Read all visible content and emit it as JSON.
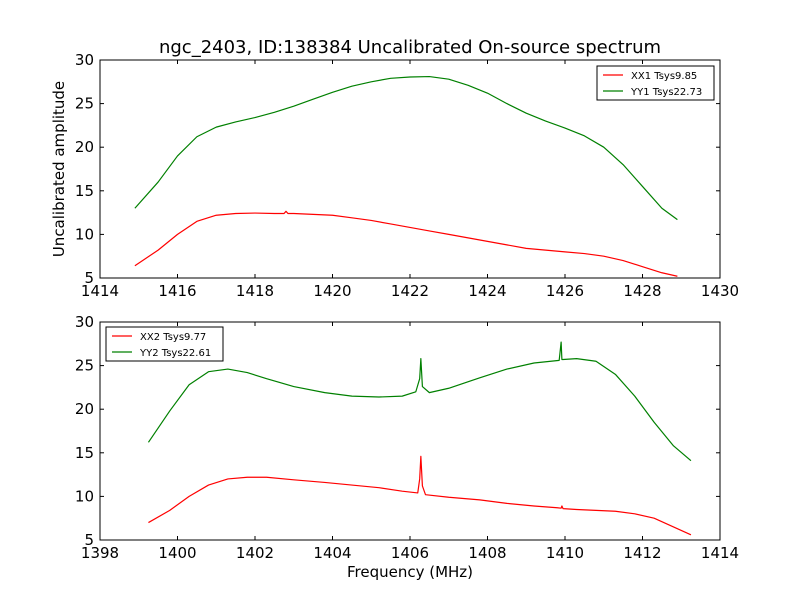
{
  "figure": {
    "title": "ngc_2403, ID:138384 Uncalibrated On-source spectrum",
    "ylabel": "Uncalibrated amplitude",
    "xlabel": "Frequency (MHz)"
  },
  "chart_data": [
    {
      "type": "line",
      "title": "ngc_2403, ID:138384 Uncalibrated On-source spectrum",
      "xlabel": "",
      "ylabel": "Uncalibrated amplitude",
      "xlim": [
        1414,
        1430
      ],
      "ylim": [
        5,
        30
      ],
      "xticks": [
        1414,
        1416,
        1418,
        1420,
        1422,
        1424,
        1426,
        1428,
        1430
      ],
      "yticks": [
        5,
        10,
        15,
        20,
        25,
        30
      ],
      "grid": false,
      "legend_position": "top-right",
      "series": [
        {
          "name": "XX1 Tsys9.85",
          "color": "#ff0000",
          "x": [
            1414.9,
            1415.5,
            1416.0,
            1416.5,
            1417.0,
            1417.5,
            1418.0,
            1418.5,
            1418.75,
            1418.8,
            1418.85,
            1419.0,
            1419.5,
            1420.0,
            1420.5,
            1421.0,
            1421.5,
            1422.0,
            1422.5,
            1423.0,
            1423.5,
            1424.0,
            1424.5,
            1425.0,
            1425.5,
            1426.0,
            1426.5,
            1427.0,
            1427.5,
            1428.0,
            1428.5,
            1428.9
          ],
          "y": [
            6.4,
            8.2,
            10.0,
            11.5,
            12.2,
            12.4,
            12.45,
            12.4,
            12.4,
            12.65,
            12.4,
            12.4,
            12.3,
            12.2,
            11.9,
            11.6,
            11.2,
            10.8,
            10.4,
            10.0,
            9.6,
            9.2,
            8.8,
            8.4,
            8.2,
            8.0,
            7.8,
            7.5,
            7.0,
            6.3,
            5.6,
            5.2
          ]
        },
        {
          "name": "YY1 Tsys22.73",
          "color": "#008000",
          "x": [
            1414.9,
            1415.5,
            1416.0,
            1416.5,
            1417.0,
            1417.5,
            1418.0,
            1418.5,
            1419.0,
            1419.5,
            1420.0,
            1420.5,
            1421.0,
            1421.5,
            1422.0,
            1422.5,
            1423.0,
            1423.5,
            1424.0,
            1424.5,
            1425.0,
            1425.5,
            1426.0,
            1426.5,
            1427.0,
            1427.5,
            1428.0,
            1428.5,
            1428.9
          ],
          "y": [
            13.0,
            16.0,
            19.0,
            21.2,
            22.3,
            22.9,
            23.4,
            24.0,
            24.7,
            25.5,
            26.3,
            27.0,
            27.5,
            27.9,
            28.05,
            28.1,
            27.8,
            27.1,
            26.2,
            25.0,
            23.9,
            23.0,
            22.2,
            21.3,
            20.0,
            18.0,
            15.5,
            13.0,
            11.7
          ]
        }
      ]
    },
    {
      "type": "line",
      "title": "",
      "xlabel": "Frequency (MHz)",
      "ylabel": "",
      "xlim": [
        1398,
        1414
      ],
      "ylim": [
        5,
        30
      ],
      "xticks": [
        1398,
        1400,
        1402,
        1404,
        1406,
        1408,
        1410,
        1412,
        1414
      ],
      "yticks": [
        5,
        10,
        15,
        20,
        25,
        30
      ],
      "grid": false,
      "legend_position": "top-left",
      "series": [
        {
          "name": "XX2 Tsys9.77",
          "color": "#ff0000",
          "x": [
            1399.25,
            1399.8,
            1400.3,
            1400.8,
            1401.3,
            1401.8,
            1402.3,
            1403.0,
            1403.8,
            1404.5,
            1405.2,
            1405.8,
            1406.2,
            1406.25,
            1406.28,
            1406.32,
            1406.4,
            1407.0,
            1407.8,
            1408.5,
            1409.2,
            1409.8,
            1409.9,
            1409.92,
            1409.95,
            1410.3,
            1410.8,
            1411.3,
            1411.8,
            1412.3,
            1412.8,
            1413.25
          ],
          "y": [
            7.0,
            8.4,
            10.0,
            11.3,
            12.0,
            12.2,
            12.2,
            11.9,
            11.6,
            11.3,
            11.0,
            10.6,
            10.4,
            12.0,
            14.6,
            11.2,
            10.2,
            9.9,
            9.6,
            9.2,
            8.9,
            8.7,
            8.65,
            8.9,
            8.6,
            8.5,
            8.4,
            8.3,
            8.0,
            7.5,
            6.5,
            5.6
          ]
        },
        {
          "name": "YY2 Tsys22.61",
          "color": "#008000",
          "x": [
            1399.25,
            1399.8,
            1400.3,
            1400.8,
            1401.3,
            1401.8,
            1402.3,
            1403.0,
            1403.8,
            1404.5,
            1405.2,
            1405.8,
            1406.15,
            1406.25,
            1406.28,
            1406.32,
            1406.5,
            1407.0,
            1407.8,
            1408.5,
            1409.2,
            1409.85,
            1409.9,
            1409.92,
            1409.95,
            1410.3,
            1410.8,
            1411.3,
            1411.8,
            1412.3,
            1412.8,
            1413.25
          ],
          "y": [
            16.2,
            19.8,
            22.8,
            24.3,
            24.6,
            24.2,
            23.5,
            22.6,
            21.9,
            21.5,
            21.4,
            21.5,
            22.0,
            23.5,
            25.8,
            22.6,
            21.9,
            22.4,
            23.6,
            24.6,
            25.3,
            25.6,
            27.7,
            25.7,
            25.7,
            25.8,
            25.5,
            24.0,
            21.5,
            18.5,
            15.8,
            14.1
          ]
        }
      ]
    }
  ]
}
